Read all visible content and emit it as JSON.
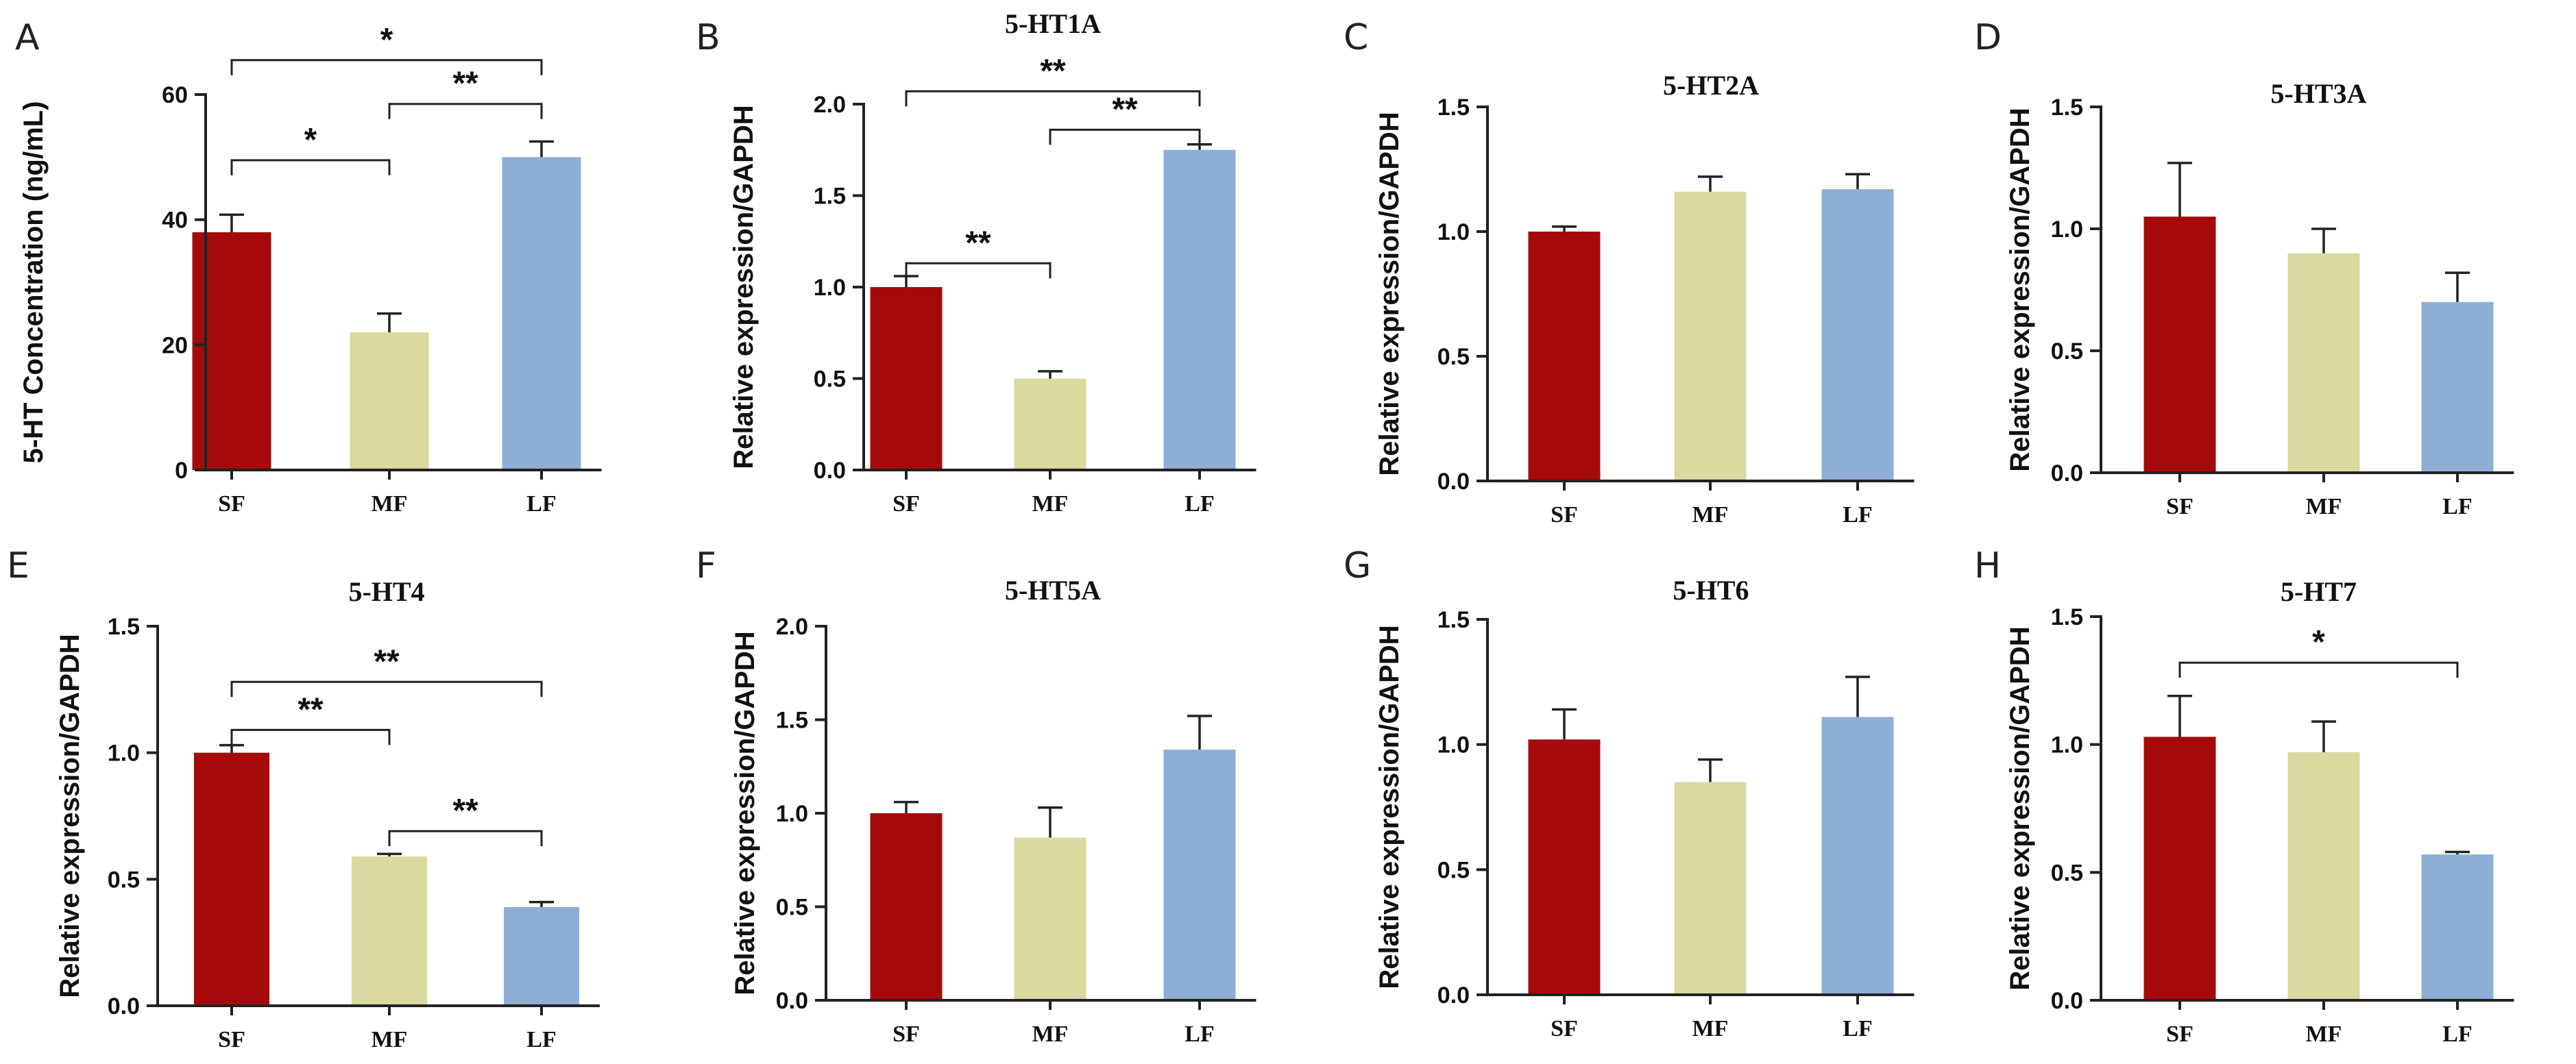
{
  "colors": {
    "SF": "#a50a0a",
    "MF": "#d9d9a0",
    "LF": "#8eaed6"
  },
  "chart_data": [
    {
      "panel": "A",
      "type": "bar",
      "title": "",
      "xlabel": "",
      "ylabel": "5-HT Concentration (ng/mL)",
      "ylim": [
        0,
        60
      ],
      "yticks": [
        0,
        20,
        40,
        60
      ],
      "ytick_labels": [
        "0",
        "20",
        "40",
        "60"
      ],
      "categories": [
        "SF",
        "MF",
        "LF"
      ],
      "values": [
        38,
        22,
        50
      ],
      "errors": [
        2.8,
        3.0,
        2.5
      ],
      "significance": [
        {
          "from": 0,
          "to": 1,
          "label": "*",
          "y": 49.5
        },
        {
          "from": 1,
          "to": 2,
          "label": "**",
          "y": 58.5
        },
        {
          "from": 0,
          "to": 2,
          "label": "*",
          "y": 65.5
        }
      ]
    },
    {
      "panel": "B",
      "type": "bar",
      "title": "5-HT1A",
      "xlabel": "",
      "ylabel": "Relative expression/GAPDH",
      "ylim": [
        0,
        2.0
      ],
      "yticks": [
        0,
        0.5,
        1.0,
        1.5,
        2.0
      ],
      "ytick_labels": [
        "0.0",
        "0.5",
        "1.0",
        "1.5",
        "2.0"
      ],
      "categories": [
        "SF",
        "MF",
        "LF"
      ],
      "values": [
        1.0,
        0.5,
        1.75
      ],
      "errors": [
        0.06,
        0.04,
        0.03
      ],
      "significance": [
        {
          "from": 0,
          "to": 1,
          "label": "**",
          "y": 1.13
        },
        {
          "from": 1,
          "to": 2,
          "label": "**",
          "y": 1.86
        },
        {
          "from": 0,
          "to": 2,
          "label": "**",
          "y": 2.07
        }
      ]
    },
    {
      "panel": "C",
      "type": "bar",
      "title": "5-HT2A",
      "xlabel": "",
      "ylabel": "Relative expression/GAPDH",
      "ylim": [
        0,
        1.5
      ],
      "yticks": [
        0,
        0.5,
        1.0,
        1.5
      ],
      "ytick_labels": [
        "0.0",
        "0.5",
        "1.0",
        "1.5"
      ],
      "categories": [
        "SF",
        "MF",
        "LF"
      ],
      "values": [
        1.0,
        1.16,
        1.17
      ],
      "errors": [
        0.02,
        0.06,
        0.06
      ],
      "significance": []
    },
    {
      "panel": "D",
      "type": "bar",
      "title": "5-HT3A",
      "xlabel": "",
      "ylabel": "Relative expression/GAPDH",
      "ylim": [
        0,
        1.5
      ],
      "yticks": [
        0,
        0.5,
        1.0,
        1.5
      ],
      "ytick_labels": [
        "0.0",
        "0.5",
        "1.0",
        "1.5"
      ],
      "categories": [
        "SF",
        "MF",
        "LF"
      ],
      "values": [
        1.05,
        0.9,
        0.7
      ],
      "errors": [
        0.22,
        0.1,
        0.12
      ],
      "significance": []
    },
    {
      "panel": "E",
      "type": "bar",
      "title": "5-HT4",
      "xlabel": "",
      "ylabel": "Relative expression/GAPDH",
      "ylim": [
        0,
        1.5
      ],
      "yticks": [
        0,
        0.5,
        1.0,
        1.5
      ],
      "ytick_labels": [
        "0.0",
        "0.5",
        "1.0",
        "1.5"
      ],
      "categories": [
        "SF",
        "MF",
        "LF"
      ],
      "values": [
        1.0,
        0.59,
        0.39
      ],
      "errors": [
        0.03,
        0.01,
        0.02
      ],
      "significance": [
        {
          "from": 0,
          "to": 1,
          "label": "**",
          "y": 1.09
        },
        {
          "from": 1,
          "to": 2,
          "label": "**",
          "y": 0.69
        },
        {
          "from": 0,
          "to": 2,
          "label": "**",
          "y": 1.28
        }
      ]
    },
    {
      "panel": "F",
      "type": "bar",
      "title": "5-HT5A",
      "xlabel": "",
      "ylabel": "Relative expression/GAPDH",
      "ylim": [
        0,
        2.0
      ],
      "yticks": [
        0,
        0.5,
        1.0,
        1.5,
        2.0
      ],
      "ytick_labels": [
        "0.0",
        "0.5",
        "1.0",
        "1.5",
        "2.0"
      ],
      "categories": [
        "SF",
        "MF",
        "LF"
      ],
      "values": [
        1.0,
        0.87,
        1.34
      ],
      "errors": [
        0.06,
        0.16,
        0.18
      ],
      "significance": []
    },
    {
      "panel": "G",
      "type": "bar",
      "title": "5-HT6",
      "xlabel": "",
      "ylabel": "Relative expression/GAPDH",
      "ylim": [
        0,
        1.5
      ],
      "yticks": [
        0,
        0.5,
        1.0,
        1.5
      ],
      "ytick_labels": [
        "0.0",
        "0.5",
        "1.0",
        "1.5"
      ],
      "categories": [
        "SF",
        "MF",
        "LF"
      ],
      "values": [
        1.02,
        0.85,
        1.11
      ],
      "errors": [
        0.12,
        0.09,
        0.16
      ],
      "significance": []
    },
    {
      "panel": "H",
      "type": "bar",
      "title": "5-HT7",
      "xlabel": "",
      "ylabel": "Relative expression/GAPDH",
      "ylim": [
        0,
        1.5
      ],
      "yticks": [
        0,
        0.5,
        1.0,
        1.5
      ],
      "ytick_labels": [
        "0.0",
        "0.5",
        "1.0",
        "1.5"
      ],
      "categories": [
        "SF",
        "MF",
        "LF"
      ],
      "values": [
        1.03,
        0.97,
        0.57
      ],
      "errors": [
        0.16,
        0.12,
        0.01
      ],
      "significance": [
        {
          "from": 0,
          "to": 2,
          "label": "*",
          "y": 1.32
        }
      ]
    }
  ]
}
